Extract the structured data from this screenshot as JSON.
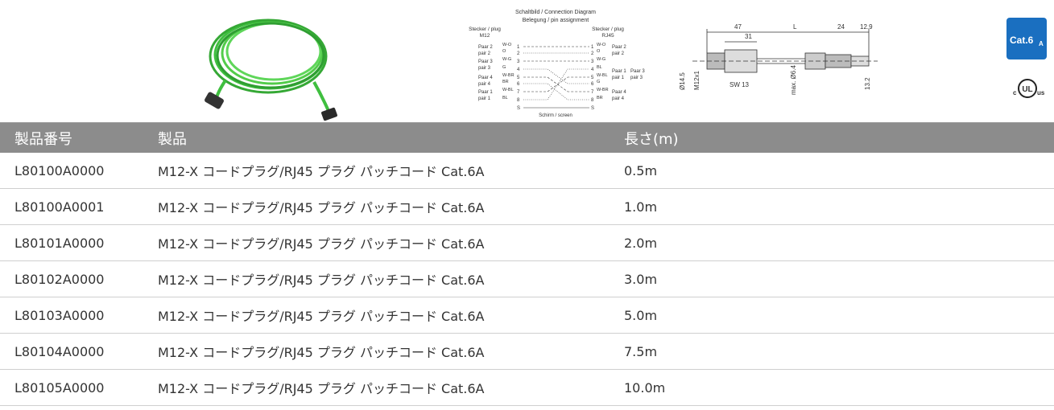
{
  "diagram": {
    "title": "Schaltbild / Connection Diagram",
    "subtitle": "Belegung / pin assignment",
    "left_header": [
      "Stecker / plug",
      "M12"
    ],
    "right_header": [
      "Stecker / plug",
      "RJ45"
    ],
    "pins": [
      "1",
      "2",
      "3",
      "4",
      "5",
      "6",
      "7",
      "8"
    ],
    "shield_pin": "S",
    "left_codes": [
      "W-O",
      "O",
      "W-G",
      "G",
      "W-BR",
      "BR",
      "W-BL",
      "BL"
    ],
    "right_codes": [
      "W-O",
      "O",
      "W-G",
      "BL",
      "W-BL",
      "G",
      "W-BR",
      "BR"
    ],
    "left_pairs": [
      [
        "Paar 2",
        "pair 2"
      ],
      [
        "Paar 3",
        "pair 3"
      ],
      [
        "Paar 4",
        "pair 4"
      ],
      [
        "Paar 1",
        "pair 1"
      ]
    ],
    "right_pairs": [
      [
        "Paar 2",
        "pair 2"
      ],
      [
        "Paar 1",
        "pair 1"
      ],
      [
        "Paar 3",
        "pair 3"
      ],
      [
        "Paar 4",
        "pair 4"
      ]
    ],
    "footer": "Schirm / screen"
  },
  "dimensions": {
    "labels": [
      "47",
      "31",
      "L",
      "24",
      "12.9",
      "SW 13",
      "Ø14.5",
      "M12x1",
      "max. Ø6.4",
      "13.2"
    ]
  },
  "badges": {
    "cat": "Cat.6",
    "cat_sub": "A",
    "ul_c": "c",
    "ul": "UL",
    "ul_us": "us"
  },
  "table": {
    "headers": [
      "製品番号",
      "製品",
      "長さ(m)"
    ],
    "rows": [
      [
        "L80100A0000",
        "M12-X コードプラグ/RJ45 プラグ パッチコード Cat.6A",
        "0.5m"
      ],
      [
        "L80100A0001",
        "M12-X コードプラグ/RJ45 プラグ パッチコード Cat.6A",
        "1.0m"
      ],
      [
        "L80101A0000",
        "M12-X コードプラグ/RJ45 プラグ パッチコード Cat.6A",
        "2.0m"
      ],
      [
        "L80102A0000",
        "M12-X コードプラグ/RJ45 プラグ パッチコード Cat.6A",
        "3.0m"
      ],
      [
        "L80103A0000",
        "M12-X コードプラグ/RJ45 プラグ パッチコード Cat.6A",
        "5.0m"
      ],
      [
        "L80104A0000",
        "M12-X コードプラグ/RJ45 プラグ パッチコード Cat.6A",
        "7.5m"
      ],
      [
        "L80105A0000",
        "M12-X コードプラグ/RJ45 プラグ パッチコード Cat.6A",
        "10.0m"
      ]
    ]
  }
}
